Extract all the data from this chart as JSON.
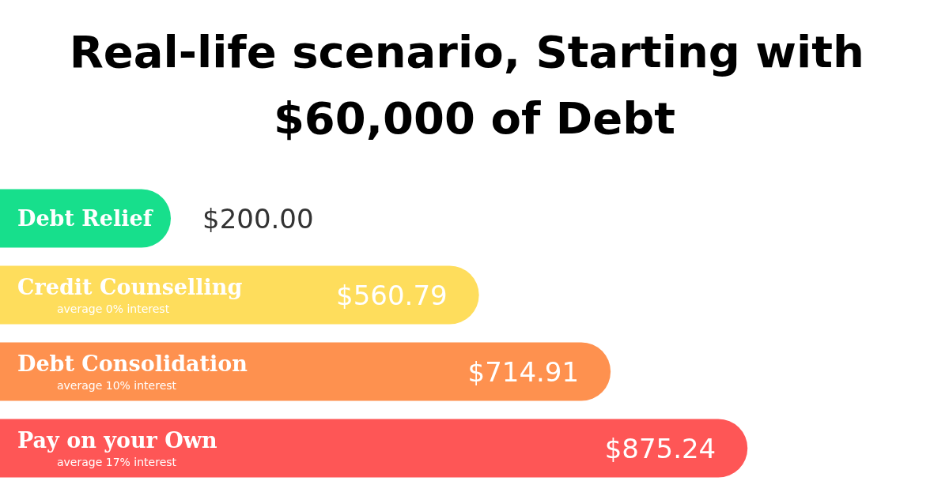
{
  "chart_data": {
    "type": "bar",
    "orientation": "horizontal",
    "title": "Real-life scenario, Starting with $60,000 of Debt",
    "categories": [
      "Debt Relief",
      "Credit Counselling",
      "Debt Consolidation",
      "Pay on your Own"
    ],
    "values": [
      200.0,
      560.79,
      714.91,
      875.24
    ],
    "colors": [
      "#17df8c",
      "#fedd5c",
      "#fe914f",
      "#fe5656"
    ],
    "value_labels": [
      "$200.00",
      "$560.79",
      "$714.91",
      "$875.24"
    ],
    "annotations": [
      "average 0% interest",
      "average 10% interest",
      "average 17% interest"
    ]
  }
}
